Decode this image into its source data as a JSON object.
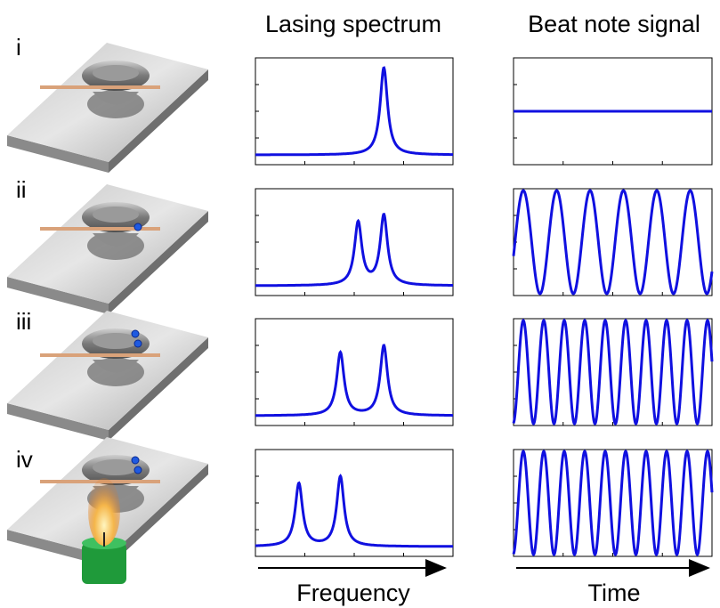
{
  "column_titles": [
    "Lasing spectrum",
    "Beat note signal"
  ],
  "rows": [
    {
      "label": "i"
    },
    {
      "label": "ii"
    },
    {
      "label": "iii"
    },
    {
      "label": "iv"
    }
  ],
  "axis_labels": [
    "Frequency",
    "Time"
  ]
}
